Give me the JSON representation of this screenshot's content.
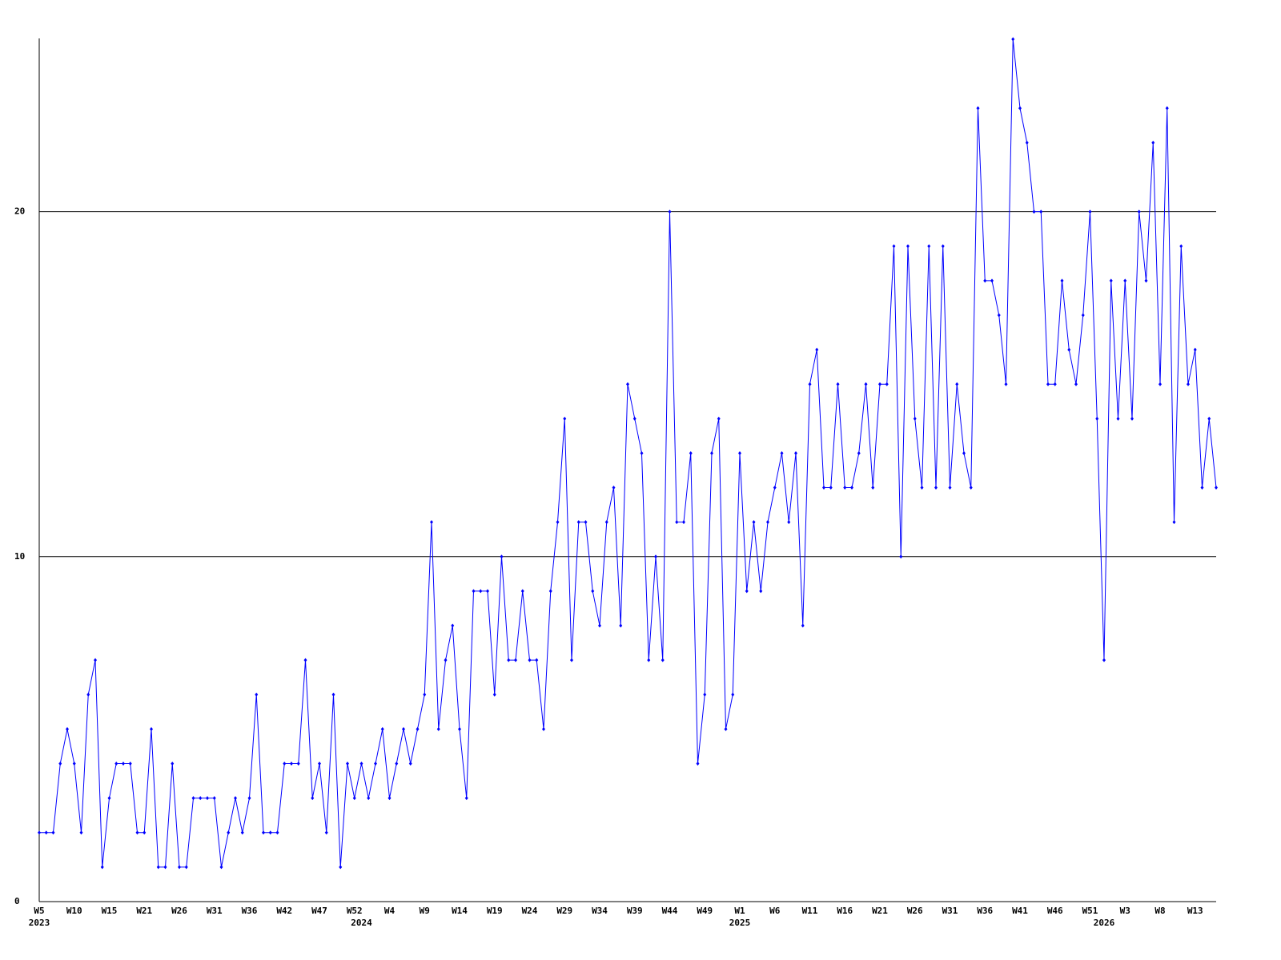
{
  "chart_data": {
    "type": "line",
    "categories": [
      "W5",
      null,
      null,
      null,
      null,
      "W10",
      null,
      null,
      null,
      null,
      "W15",
      null,
      null,
      null,
      null,
      "W21",
      null,
      null,
      null,
      null,
      "W26",
      null,
      null,
      null,
      null,
      "W31",
      null,
      null,
      null,
      null,
      "W36",
      null,
      null,
      null,
      null,
      "W42",
      null,
      null,
      null,
      null,
      "W47",
      null,
      null,
      null,
      null,
      "W52",
      null,
      null,
      null,
      null,
      "W4",
      null,
      null,
      null,
      null,
      "W9",
      null,
      null,
      null,
      null,
      "W14",
      null,
      null,
      null,
      null,
      "W19",
      null,
      null,
      null,
      null,
      "W24",
      null,
      null,
      null,
      null,
      "W29",
      null,
      null,
      null,
      null,
      "W34",
      null,
      null,
      null,
      null,
      "W39",
      null,
      null,
      null,
      null,
      "W44",
      null,
      null,
      null,
      null,
      "W49",
      null,
      null,
      null,
      null,
      "W1",
      null,
      null,
      null,
      null,
      "W6",
      null,
      null,
      null,
      null,
      "W11",
      null,
      null,
      null,
      null,
      "W16",
      null,
      null,
      null,
      null,
      "W21",
      null,
      null,
      null,
      null,
      "W26",
      null,
      null,
      null,
      null,
      "W31",
      null,
      null,
      null,
      null,
      "W36",
      null,
      null,
      null,
      null,
      "W41",
      null,
      null,
      null,
      null,
      "W46",
      null,
      null,
      null,
      null,
      "W51",
      null,
      null,
      null,
      null,
      "W3",
      null,
      null,
      null,
      null,
      "W8",
      null,
      null,
      null,
      null,
      "W13",
      null,
      null,
      null
    ],
    "category_years": [
      "2023",
      null,
      null,
      null,
      null,
      null,
      null,
      null,
      null,
      null,
      null,
      null,
      null,
      null,
      null,
      null,
      null,
      null,
      null,
      null,
      null,
      null,
      null,
      null,
      null,
      null,
      null,
      null,
      null,
      null,
      null,
      null,
      null,
      null,
      null,
      null,
      null,
      null,
      null,
      null,
      null,
      null,
      null,
      null,
      null,
      null,
      "2024",
      null,
      null,
      null,
      null,
      null,
      null,
      null,
      null,
      null,
      null,
      null,
      null,
      null,
      null,
      null,
      null,
      null,
      null,
      null,
      null,
      null,
      null,
      null,
      null,
      null,
      null,
      null,
      null,
      null,
      null,
      null,
      null,
      null,
      null,
      null,
      null,
      null,
      null,
      null,
      null,
      null,
      null,
      null,
      null,
      null,
      null,
      null,
      null,
      null,
      null,
      null,
      null,
      null,
      "2025",
      null,
      null,
      null,
      null,
      null,
      null,
      null,
      null,
      null,
      null,
      null,
      null,
      null,
      null,
      null,
      null,
      null,
      null,
      null,
      null,
      null,
      null,
      null,
      null,
      null,
      null,
      null,
      null,
      null,
      null,
      null,
      null,
      null,
      null,
      null,
      null,
      null,
      null,
      null,
      null,
      null,
      null,
      null,
      null,
      null,
      null,
      null,
      null,
      null,
      null,
      null,
      "2026",
      null,
      null,
      null,
      null,
      null,
      null,
      null,
      null,
      null,
      null,
      null,
      null,
      null,
      null,
      null,
      null
    ],
    "series": [
      {
        "color": "#0000ff",
        "values": [
          2,
          2,
          2,
          4,
          5,
          4,
          2,
          6,
          7,
          1,
          3,
          4,
          4,
          4,
          2,
          2,
          5,
          1,
          1,
          4,
          1,
          1,
          3,
          3,
          3,
          3,
          1,
          2,
          3,
          2,
          3,
          6,
          2,
          2,
          2,
          4,
          4,
          4,
          7,
          3,
          4,
          2,
          6,
          1,
          4,
          3,
          4,
          3,
          4,
          5,
          3,
          4,
          5,
          4,
          5,
          6,
          11,
          5,
          7,
          8,
          5,
          3,
          9,
          9,
          9,
          6,
          10,
          7,
          7,
          9,
          7,
          7,
          5,
          9,
          11,
          14,
          7,
          11,
          11,
          9,
          8,
          11,
          12,
          8,
          15,
          14,
          13,
          7,
          10,
          7,
          20,
          11,
          11,
          13,
          4,
          6,
          13,
          14,
          5,
          6,
          13,
          9,
          11,
          9,
          11,
          12,
          13,
          11,
          13,
          8,
          15,
          16,
          12,
          12,
          15,
          12,
          12,
          13,
          15,
          12,
          15,
          15,
          19,
          10,
          19,
          14,
          12,
          19,
          12,
          19,
          12,
          15,
          13,
          12,
          23,
          18,
          18,
          17,
          15,
          25,
          23,
          22,
          20,
          20,
          15,
          15,
          18,
          16,
          15,
          17,
          20,
          14,
          7,
          18,
          14,
          18,
          14,
          20,
          18,
          22,
          15,
          23,
          11,
          19,
          15,
          16,
          12,
          14,
          12
        ]
      }
    ],
    "ylim": [
      0,
      25
    ],
    "yticks": [
      0,
      10,
      20
    ],
    "grid": true
  }
}
